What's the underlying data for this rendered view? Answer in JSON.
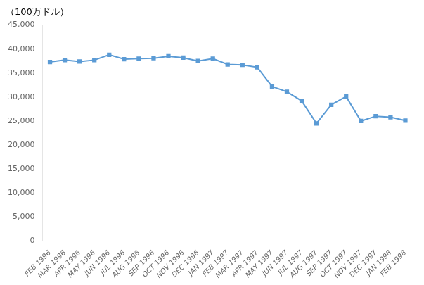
{
  "chart_data": {
    "type": "line",
    "title": "（100万ドル）",
    "categories": [
      "FEB 1996",
      "MAR 1996",
      "APR 1996",
      "MAY 1996",
      "JUN 1996",
      "JUL 1996",
      "AUG 1996",
      "SEP 1996",
      "OCT 1996",
      "NOV 1996",
      "DEC 1996",
      "JAN 1997",
      "FEB 1997",
      "MAR 1997",
      "APR 1997",
      "MAY 1997",
      "JUN 1997",
      "JUL 1997",
      "AUG 1997",
      "SEP 1997",
      "OCT 1997",
      "NOV 1997",
      "DEC 1997",
      "JAN 1998",
      "FEB 1998"
    ],
    "values": [
      37300,
      37700,
      37400,
      37700,
      38800,
      37900,
      38000,
      38100,
      38500,
      38200,
      37500,
      38000,
      36800,
      36700,
      36200,
      32200,
      31100,
      29200,
      24500,
      28400,
      30100,
      25000,
      26000,
      25800,
      25100
    ],
    "color": "#5b9bd5",
    "marker": "square",
    "ylim": [
      0,
      45000
    ],
    "yticks": [
      0,
      {
        "value": 5000,
        "label": "5,000"
      },
      {
        "value": 10000,
        "label": "10,000"
      },
      {
        "value": 15000,
        "label": "15,000"
      },
      {
        "value": 20000,
        "label": "20,000"
      },
      {
        "value": 25000,
        "label": "25,000"
      },
      {
        "value": 30000,
        "label": "30,000"
      },
      {
        "value": 35000,
        "label": "35,000"
      },
      {
        "value": 40000,
        "label": "40,000"
      },
      {
        "value": 45000,
        "label": "45,000"
      }
    ],
    "grid": false
  }
}
